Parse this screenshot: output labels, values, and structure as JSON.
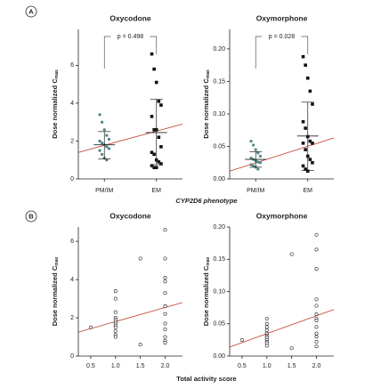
{
  "panel_labels": [
    "A",
    "B"
  ],
  "xlabels": [
    "CYP2D6 phenotype",
    "Total activity score"
  ],
  "chart_data": [
    {
      "type": "strip",
      "title": "Oxycodone",
      "ylabel": "Dose normalized C",
      "ylabel_sub": "max",
      "categories": [
        "PM/IM",
        "EM"
      ],
      "annotation": "p = 0.498",
      "groups": [
        {
          "color": "#4f8585",
          "marker": "circle",
          "values": [
            3.4,
            3.0,
            2.6,
            2.3,
            2.1,
            2.0,
            1.9,
            1.8,
            1.7,
            1.6,
            1.5,
            1.3,
            1.1,
            1.0
          ],
          "mean": 1.8,
          "lower": 1.05,
          "upper": 2.5
        },
        {
          "color": "#111111",
          "marker": "square",
          "values": [
            6.6,
            5.8,
            5.1,
            4.1,
            3.9,
            3.3,
            2.6,
            2.6,
            2.2,
            1.7,
            1.4,
            1.3,
            1.0,
            0.9,
            0.8,
            0.7,
            0.6,
            0.6
          ],
          "mean": 2.45,
          "lower": 0.75,
          "upper": 4.2
        }
      ],
      "fit": {
        "color": "#c0392b",
        "y": [
          1.4,
          2.9
        ]
      },
      "ylim": [
        0,
        7.9
      ],
      "yticks": [
        0,
        2,
        4,
        6
      ]
    },
    {
      "type": "strip",
      "title": "Oxymorphone",
      "ylabel": "Dose normalized C",
      "ylabel_sub": "max",
      "categories": [
        "PM/IM",
        "EM"
      ],
      "annotation": "p = 0.028",
      "groups": [
        {
          "color": "#4f8585",
          "marker": "circle",
          "values": [
            0.058,
            0.052,
            0.045,
            0.04,
            0.035,
            0.032,
            0.03,
            0.028,
            0.026,
            0.025,
            0.022,
            0.02,
            0.018,
            0.015
          ],
          "mean": 0.03,
          "lower": 0.018,
          "upper": 0.042
        },
        {
          "color": "#111111",
          "marker": "square",
          "values": [
            0.188,
            0.175,
            0.155,
            0.135,
            0.115,
            0.088,
            0.078,
            0.065,
            0.058,
            0.055,
            0.055,
            0.045,
            0.035,
            0.03,
            0.025,
            0.02,
            0.015,
            0.012
          ],
          "mean": 0.066,
          "lower": 0.013,
          "upper": 0.118
        }
      ],
      "fit": {
        "color": "#c0392b",
        "y": [
          0.012,
          0.063
        ]
      },
      "ylim": [
        0,
        0.23
      ],
      "yticks": [
        {
          "value": 0,
          "label": "0.00"
        },
        {
          "value": 0.05,
          "label": "0.05"
        },
        {
          "value": 0.1,
          "label": "0.10"
        },
        {
          "value": 0.15,
          "label": "0.15"
        },
        {
          "value": 0.2,
          "label": "0.20"
        }
      ]
    },
    {
      "type": "scatter",
      "title": "Oxycodone",
      "ylabel": "Dose normalized C",
      "ylabel_sub": "max",
      "x": [
        0.5,
        1,
        1,
        1,
        1,
        1,
        1,
        1,
        1,
        1,
        1,
        1,
        1,
        1.5,
        1.5,
        2,
        2,
        2,
        2,
        2,
        2,
        2,
        2,
        2,
        2,
        2,
        2,
        2
      ],
      "y": [
        1.5,
        3.4,
        3.0,
        2.3,
        2.0,
        1.9,
        1.8,
        1.7,
        1.6,
        1.5,
        1.3,
        1.1,
        1.0,
        5.1,
        0.6,
        6.6,
        5.1,
        4.1,
        3.9,
        3.3,
        2.6,
        2.6,
        2.2,
        1.7,
        1.4,
        1.0,
        0.8,
        0.7
      ],
      "fit": {
        "color": "#c0392b",
        "x": [
          0.25,
          2.35
        ],
        "y": [
          1.25,
          2.8
        ]
      },
      "xlim": [
        0.25,
        2.35
      ],
      "ylim": [
        0,
        6.75
      ],
      "xticks": [
        {
          "value": 0.5,
          "label": "0.5"
        },
        {
          "value": 1,
          "label": "1.0"
        },
        {
          "value": 1.5,
          "label": "1.5"
        },
        {
          "value": 2,
          "label": "2.0"
        }
      ],
      "yticks": [
        0,
        2,
        4,
        6
      ]
    },
    {
      "type": "scatter",
      "title": "Oxymorphone",
      "ylabel": "Dose normalized C",
      "ylabel_sub": "max",
      "x": [
        0.5,
        1,
        1,
        1,
        1,
        1,
        1,
        1,
        1,
        1,
        1,
        1,
        1,
        1.5,
        1.5,
        2,
        2,
        2,
        2,
        2,
        2,
        2,
        2,
        2,
        2,
        2,
        2,
        2
      ],
      "y": [
        0.025,
        0.058,
        0.05,
        0.045,
        0.04,
        0.035,
        0.032,
        0.03,
        0.028,
        0.025,
        0.022,
        0.02,
        0.016,
        0.158,
        0.012,
        0.188,
        0.165,
        0.135,
        0.088,
        0.078,
        0.065,
        0.058,
        0.055,
        0.045,
        0.035,
        0.03,
        0.022,
        0.015
      ],
      "fit": {
        "color": "#c0392b",
        "x": [
          0.25,
          2.35
        ],
        "y": [
          0.014,
          0.072
        ]
      },
      "xlim": [
        0.25,
        2.35
      ],
      "ylim": [
        0,
        0.2
      ],
      "xticks": [
        {
          "value": 0.5,
          "label": "0.5"
        },
        {
          "value": 1,
          "label": "1.0"
        },
        {
          "value": 1.5,
          "label": "1.5"
        },
        {
          "value": 2,
          "label": "2.0"
        }
      ],
      "yticks": [
        {
          "value": 0,
          "label": "0.00"
        },
        {
          "value": 0.05,
          "label": "0.05"
        },
        {
          "value": 0.1,
          "label": "0.10"
        },
        {
          "value": 0.15,
          "label": "0.15"
        },
        {
          "value": 0.2,
          "label": "0.20"
        }
      ]
    }
  ]
}
